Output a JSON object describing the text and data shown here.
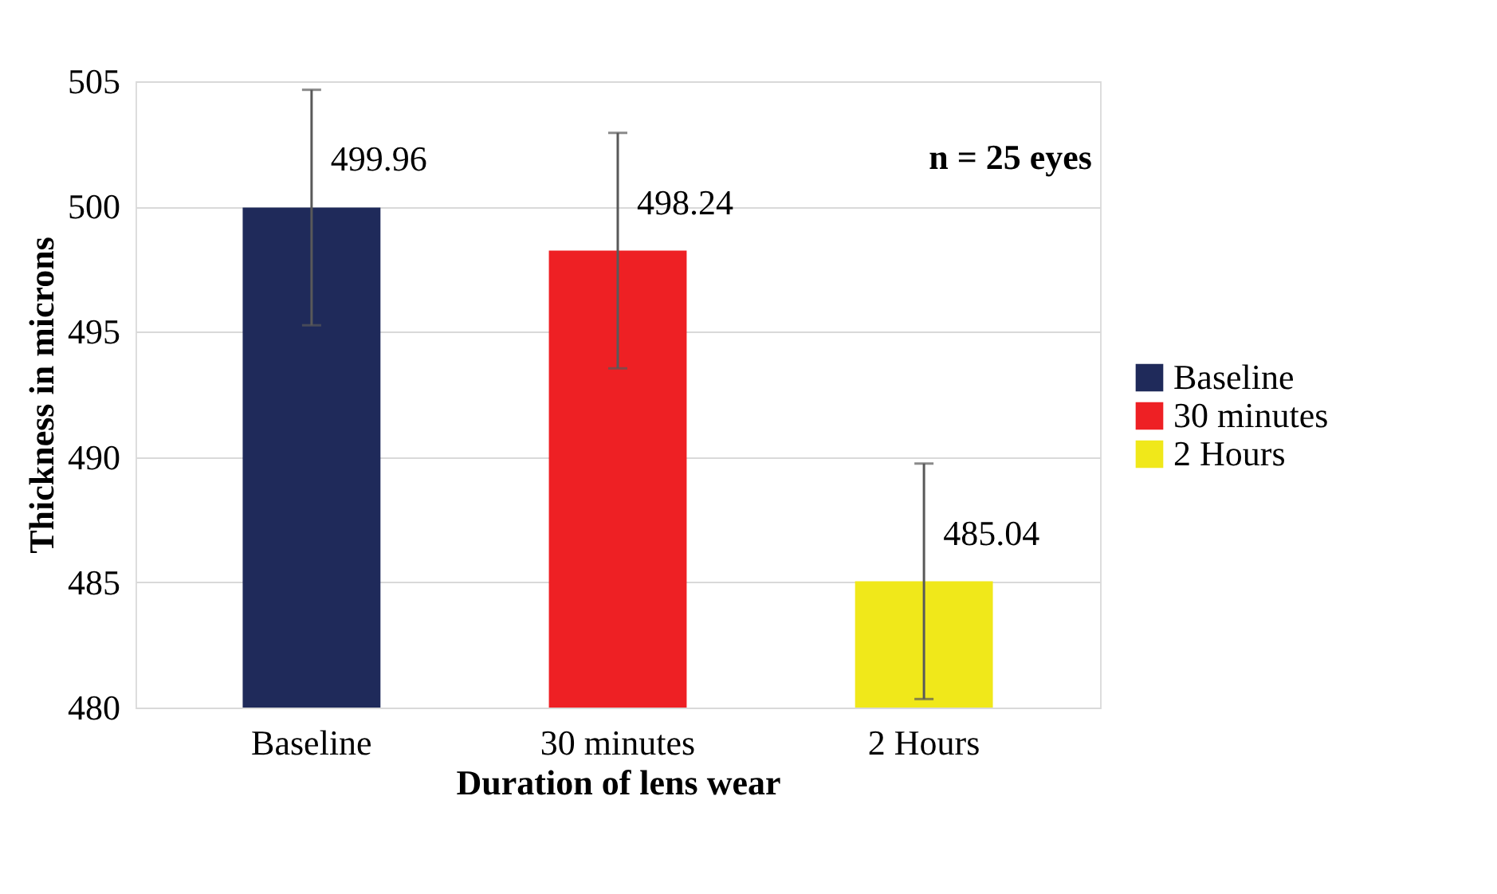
{
  "chart_data": {
    "type": "bar",
    "xlabel": "Duration  of lens wear",
    "ylabel": "Thickness in microns",
    "categories": [
      "Baseline",
      "30 minutes",
      "2 Hours"
    ],
    "series": [
      {
        "name": "Baseline",
        "color": "#1f2a5a",
        "values": [
          499.96,
          null,
          null
        ],
        "errors": [
          4.7,
          null,
          null
        ]
      },
      {
        "name": "30 minutes",
        "color": "#ee2024",
        "values": [
          null,
          498.24,
          null
        ],
        "errors": [
          null,
          4.7,
          null
        ]
      },
      {
        "name": "2 Hours",
        "color": "#f0e81a",
        "values": [
          null,
          null,
          485.04
        ],
        "errors": [
          null,
          null,
          4.7
        ]
      }
    ],
    "ylim": [
      480,
      505
    ],
    "yticks": [
      480,
      485,
      490,
      495,
      500,
      505
    ],
    "grid": "y",
    "legend": "right",
    "data_labels": true,
    "annotations": [
      "n = 25 eyes"
    ]
  }
}
